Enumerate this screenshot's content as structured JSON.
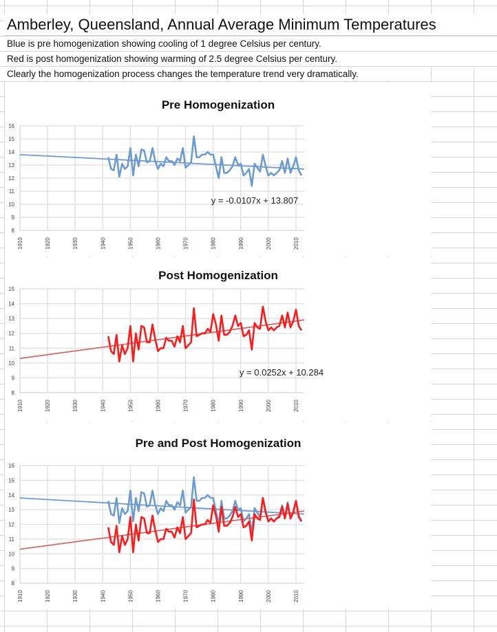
{
  "header": {
    "title": "Amberley, Queensland, Annual Average Minimum Temperatures",
    "lines": [
      "Blue is pre homogenization showing cooling of 1 degree Celsius per century.",
      "Red is post homogenization showing warming of 2.5 degree Celsius per century.",
      "Clearly the homogenization process changes the temperature trend very dramatically."
    ]
  },
  "colors": {
    "pre": "#6b9bd1",
    "post": "#ff1a1a",
    "pre_trend": "#6b9bd1",
    "post_trend": "#d46a6a"
  },
  "series_data": {
    "years_start": 1942,
    "pre": [
      13.6,
      12.7,
      12.6,
      13.8,
      12.1,
      13.1,
      12.7,
      12.9,
      14.3,
      12.2,
      13.8,
      12.9,
      14.2,
      14.1,
      13.2,
      13.3,
      14.3,
      13.3,
      12.7,
      13.1,
      12.9,
      13.6,
      13.3,
      13.3,
      13.0,
      13.5,
      13.3,
      14.3,
      12.8,
      13.0,
      13.2,
      15.2,
      13.6,
      13.6,
      13.8,
      13.8,
      14.0,
      13.8,
      13.8,
      12.9,
      12.0,
      13.6,
      12.4,
      12.4,
      12.6,
      12.9,
      13.6,
      13.0,
      13.1,
      12.2,
      12.4,
      12.7,
      11.4,
      13.1,
      12.8,
      12.5,
      13.8,
      12.9,
      12.2,
      12.4,
      12.2,
      12.4,
      12.6,
      13.3,
      12.4,
      13.5,
      12.4,
      12.9,
      13.6,
      12.6,
      12.2
    ],
    "post": [
      11.8,
      10.8,
      10.6,
      11.9,
      10.1,
      11.2,
      10.6,
      11.0,
      12.5,
      10.1,
      12.0,
      10.9,
      12.5,
      12.4,
      11.4,
      11.4,
      12.6,
      11.6,
      10.8,
      11.0,
      11.0,
      11.7,
      11.5,
      11.5,
      11.1,
      11.8,
      11.4,
      12.5,
      11.0,
      11.2,
      11.4,
      13.7,
      11.8,
      11.9,
      12.0,
      12.0,
      12.3,
      12.1,
      13.3,
      12.6,
      11.5,
      13.2,
      11.9,
      11.9,
      12.1,
      12.5,
      13.2,
      12.5,
      12.7,
      11.8,
      11.9,
      12.2,
      10.9,
      12.7,
      12.4,
      12.3,
      13.8,
      12.8,
      12.2,
      12.4,
      12.2,
      12.4,
      12.5,
      13.2,
      12.4,
      13.4,
      12.4,
      12.8,
      13.6,
      12.5,
      12.2
    ]
  },
  "chart_data": [
    {
      "type": "line",
      "title": "Pre Homogenization",
      "x_ticks": [
        "1910",
        "1920",
        "1930",
        "1940",
        "1950",
        "1960",
        "1970",
        "1980",
        "1990",
        "2000",
        "2010"
      ],
      "y_ticks": [
        "8",
        "9",
        "10",
        "11",
        "12",
        "13",
        "14",
        "15",
        "16"
      ],
      "ylim": [
        8,
        16
      ],
      "xlim": [
        1910,
        2013
      ],
      "grid": true,
      "series": [
        {
          "key": "pre",
          "trend": {
            "slope": -0.0107,
            "intercept": 13.807
          }
        }
      ],
      "equation": "y = -0.0107x + 13.807"
    },
    {
      "type": "line",
      "title": "Post Homogenization",
      "x_ticks": [
        "1910",
        "1920",
        "1930",
        "1940",
        "1950",
        "1960",
        "1970",
        "1980",
        "1990",
        "2000",
        "2010"
      ],
      "y_ticks": [
        "8",
        "9",
        "10",
        "11",
        "12",
        "13",
        "14",
        "15"
      ],
      "ylim": [
        8,
        15
      ],
      "xlim": [
        1910,
        2013
      ],
      "grid": true,
      "series": [
        {
          "key": "post",
          "trend": {
            "slope": 0.0252,
            "intercept": 10.284
          }
        }
      ],
      "equation": "y = 0.0252x + 10.284"
    },
    {
      "type": "line",
      "title": "Pre and Post Homogenization",
      "x_ticks": [
        "1910",
        "1920",
        "1930",
        "1940",
        "1950",
        "1960",
        "1970",
        "1980",
        "1990",
        "2000",
        "2010"
      ],
      "y_ticks": [
        "8",
        "9",
        "10",
        "11",
        "12",
        "13",
        "14",
        "15",
        "16"
      ],
      "ylim": [
        8,
        16
      ],
      "xlim": [
        1910,
        2013
      ],
      "grid": true,
      "series": [
        {
          "key": "pre",
          "trend": {
            "slope": -0.0107,
            "intercept": 13.807
          }
        },
        {
          "key": "post",
          "trend": {
            "slope": 0.0252,
            "intercept": 10.284
          }
        }
      ],
      "equation": ""
    }
  ]
}
